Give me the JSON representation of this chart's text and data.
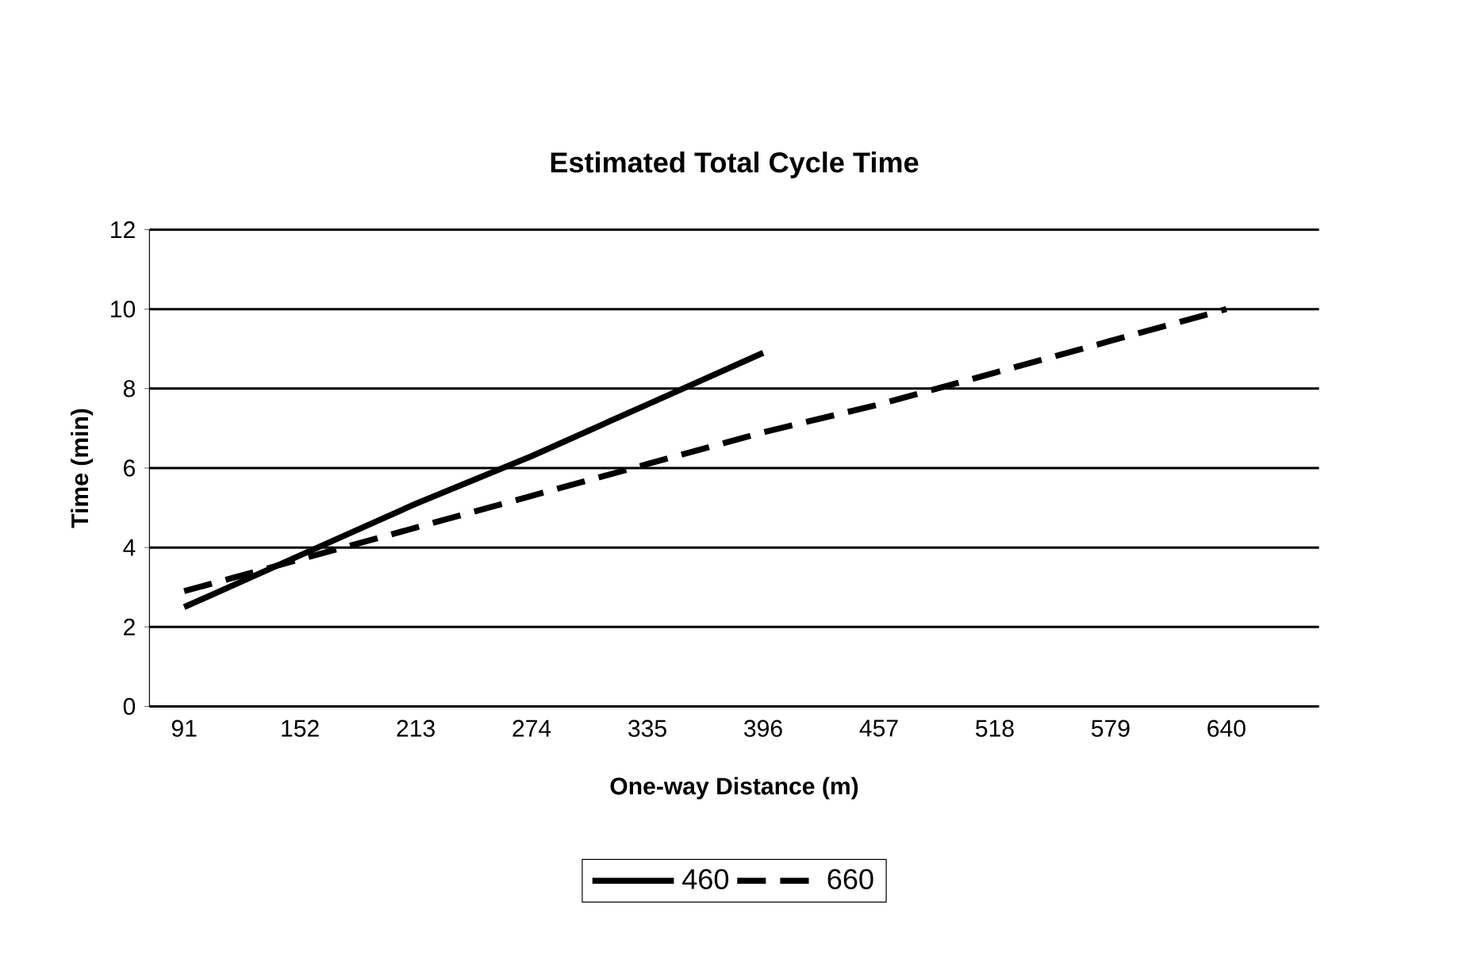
{
  "chart_data": {
    "type": "line",
    "title": "Estimated Total Cycle Time",
    "xlabel": "One-way Distance (m)",
    "ylabel": "Time (min)",
    "categories": [
      "91",
      "152",
      "213",
      "274",
      "335",
      "396",
      "457",
      "518",
      "579",
      "640"
    ],
    "series": [
      {
        "name": "460",
        "color": "#000000",
        "line_style": "solid",
        "values": [
          2.5,
          3.8,
          5.1,
          6.3,
          7.6,
          8.9,
          null,
          null,
          null,
          null
        ]
      },
      {
        "name": "660",
        "color": "#000000",
        "line_style": "dashed",
        "values": [
          2.9,
          3.7,
          4.5,
          5.3,
          6.1,
          6.9,
          7.6,
          8.4,
          9.2,
          10.0
        ]
      }
    ],
    "ylim": [
      0,
      12
    ],
    "yticks": [
      0,
      2,
      4,
      6,
      8,
      10,
      12
    ],
    "grid": "y",
    "legend": "bottom",
    "marker": "none"
  }
}
